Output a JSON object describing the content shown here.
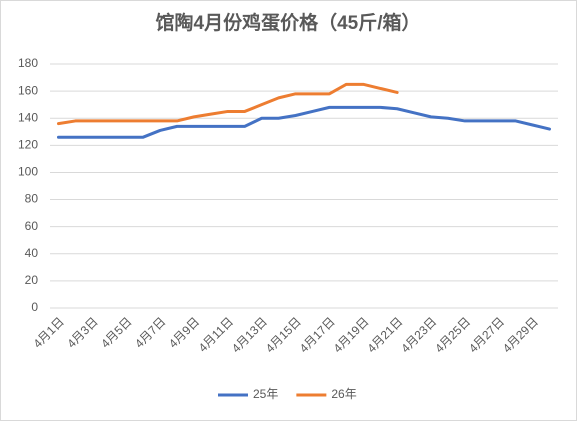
{
  "chart_data": {
    "type": "line",
    "title": "馆陶4月份鸡蛋价格（45斤/箱）",
    "categories": [
      "4月1日",
      null,
      "4月3日",
      null,
      "4月5日",
      null,
      "4月7日",
      null,
      "4月9日",
      null,
      "4月11日",
      null,
      "4月13日",
      null,
      "4月15日",
      null,
      "4月17日",
      null,
      "4月19日",
      null,
      "4月21日",
      null,
      "4月23日",
      null,
      "4月25日",
      null,
      "4月27日",
      null,
      "4月29日",
      null
    ],
    "series": [
      {
        "name": "25年",
        "color": "#4472c4",
        "values": [
          126,
          126,
          126,
          126,
          126,
          126,
          131,
          134,
          134,
          134,
          134,
          134,
          140,
          140,
          142,
          145,
          148,
          148,
          148,
          148,
          147,
          144,
          141,
          140,
          138,
          138,
          138,
          138,
          135,
          132
        ]
      },
      {
        "name": "26年",
        "color": "#ed7d31",
        "values": [
          136,
          138,
          138,
          138,
          138,
          138,
          138,
          138,
          141,
          143,
          145,
          145,
          150,
          155,
          158,
          158,
          158,
          165,
          165,
          162,
          159,
          null,
          null,
          null,
          null,
          null,
          null,
          null,
          null,
          null
        ]
      }
    ],
    "ylim": [
      0,
      180
    ],
    "yticks": [
      0,
      20,
      40,
      60,
      80,
      100,
      120,
      140,
      160,
      180
    ],
    "grid": true,
    "legend": "bottom"
  }
}
